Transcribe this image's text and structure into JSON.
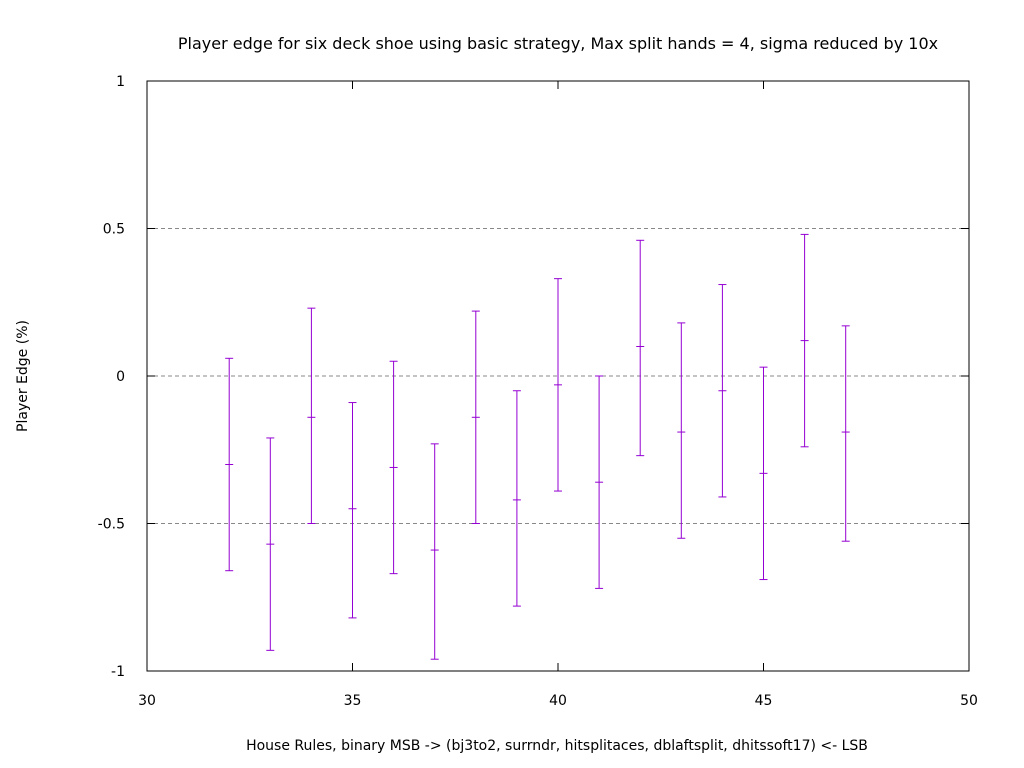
{
  "chart_data": {
    "type": "scatter",
    "subtype": "errorbars",
    "title": "Player edge for six deck shoe using basic strategy, Max split hands = 4, sigma reduced by 10x",
    "xlabel": "House Rules, binary MSB -> (bj3to2, surrndr, hitsplitaces, dblaftsplit, dhitssoft17) <- LSB",
    "ylabel": "Player Edge (%)",
    "xlim": [
      30,
      50
    ],
    "ylim": [
      -1,
      1
    ],
    "x_ticks": [
      "30",
      "35",
      "40",
      "45",
      "50"
    ],
    "y_ticks": [
      "1",
      "0.5",
      "0",
      "-0.5",
      "-1"
    ],
    "grid": "horizontal dashed",
    "colors": {
      "series": "#9400d3",
      "grid": "#888888",
      "axes": "#000000"
    },
    "points": [
      {
        "x": 32,
        "y": -0.3,
        "low": -0.66,
        "high": 0.06
      },
      {
        "x": 33,
        "y": -0.57,
        "low": -0.93,
        "high": -0.21
      },
      {
        "x": 34,
        "y": -0.14,
        "low": -0.5,
        "high": 0.23
      },
      {
        "x": 35,
        "y": -0.45,
        "low": -0.82,
        "high": -0.09
      },
      {
        "x": 36,
        "y": -0.31,
        "low": -0.67,
        "high": 0.05
      },
      {
        "x": 37,
        "y": -0.59,
        "low": -0.96,
        "high": -0.23
      },
      {
        "x": 38,
        "y": -0.14,
        "low": -0.5,
        "high": 0.22
      },
      {
        "x": 39,
        "y": -0.42,
        "low": -0.78,
        "high": -0.05
      },
      {
        "x": 40,
        "y": -0.03,
        "low": -0.39,
        "high": 0.33
      },
      {
        "x": 41,
        "y": -0.36,
        "low": -0.72,
        "high": 0.0
      },
      {
        "x": 42,
        "y": 0.1,
        "low": -0.27,
        "high": 0.46
      },
      {
        "x": 43,
        "y": -0.19,
        "low": -0.55,
        "high": 0.18
      },
      {
        "x": 44,
        "y": -0.05,
        "low": -0.41,
        "high": 0.31
      },
      {
        "x": 45,
        "y": -0.33,
        "low": -0.69,
        "high": 0.03
      },
      {
        "x": 46,
        "y": 0.12,
        "low": -0.24,
        "high": 0.48
      },
      {
        "x": 47,
        "y": -0.19,
        "low": -0.56,
        "high": 0.17
      }
    ]
  }
}
